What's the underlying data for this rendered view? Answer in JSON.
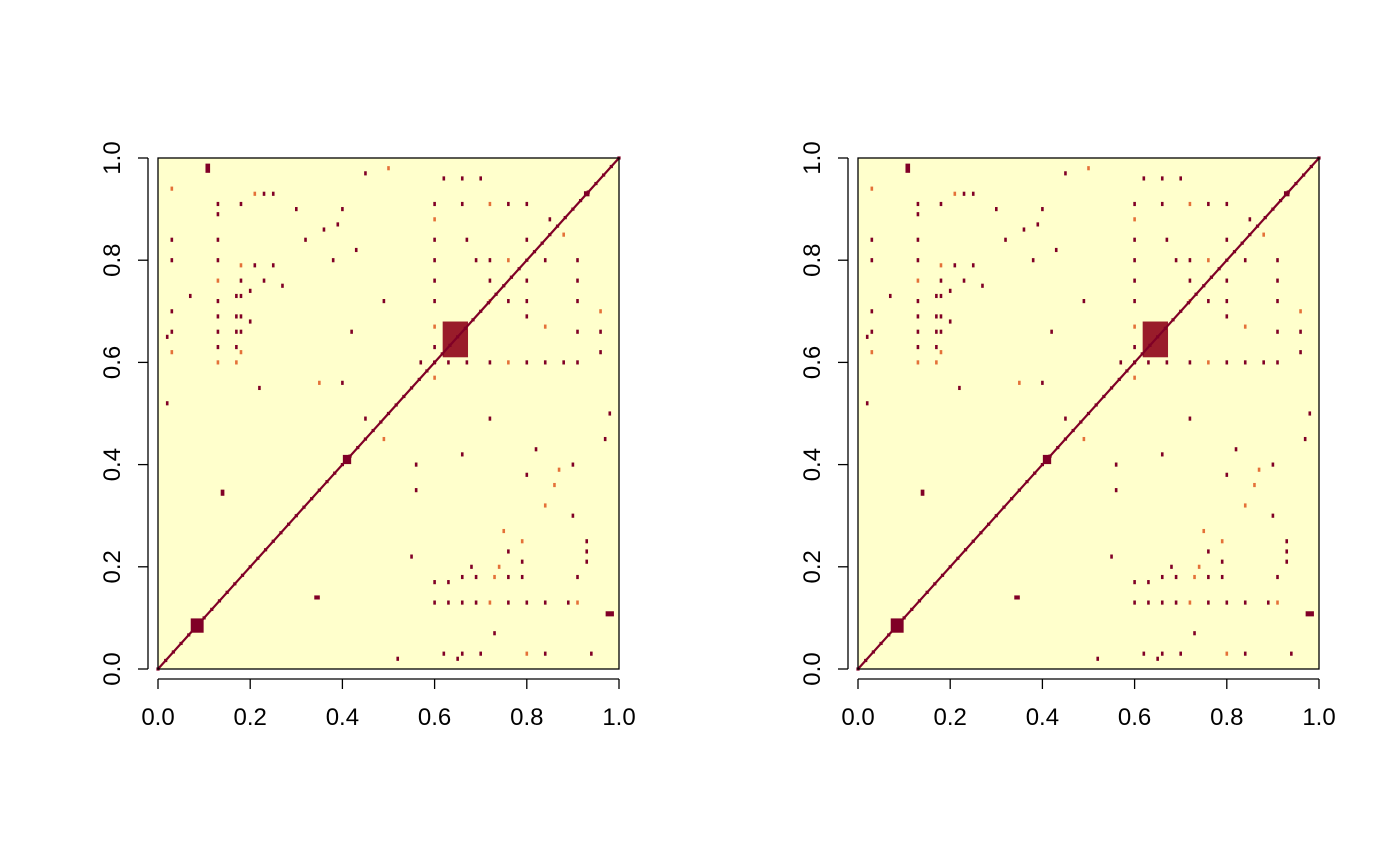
{
  "chart_data": [
    {
      "type": "heatmap",
      "title": "",
      "xlabel": "",
      "ylabel": "",
      "xlim": [
        0,
        1
      ],
      "ylim": [
        0,
        1
      ],
      "x_ticks": [
        "0.0",
        "0.2",
        "0.4",
        "0.6",
        "0.8",
        "1.0"
      ],
      "y_ticks": [
        "0.0",
        "0.2",
        "0.4",
        "0.6",
        "0.8",
        "1.0"
      ],
      "grid": false,
      "legend": "none",
      "colors": {
        "background": "#ffffcc",
        "low": "#ffffcc",
        "mid": "#fd8d3c",
        "high": "#800026"
      },
      "diagonal": {
        "from": [
          0,
          0
        ],
        "to": [
          1,
          1
        ],
        "value": 1.0
      },
      "blocks": [
        {
          "x": 0.085,
          "y": 0.085,
          "w": 0.028,
          "h": 0.028,
          "value": 1.0
        },
        {
          "x": 0.41,
          "y": 0.41,
          "w": 0.018,
          "h": 0.018,
          "value": 1.0
        },
        {
          "x": 0.14,
          "y": 0.345,
          "w": 0.008,
          "h": 0.012,
          "value": 1.0
        },
        {
          "x": 0.345,
          "y": 0.14,
          "w": 0.012,
          "h": 0.008,
          "value": 1.0
        },
        {
          "x": 0.645,
          "y": 0.645,
          "w": 0.055,
          "h": 0.07,
          "value": 0.9
        },
        {
          "x": 0.93,
          "y": 0.93,
          "w": 0.012,
          "h": 0.01,
          "value": 1.0
        },
        {
          "x": 0.98,
          "y": 0.108,
          "w": 0.018,
          "h": 0.01,
          "value": 1.0
        },
        {
          "x": 0.108,
          "y": 0.98,
          "w": 0.01,
          "h": 0.018,
          "value": 1.0
        }
      ],
      "scatter_cells": [
        [
          0.13,
          0.6
        ],
        [
          0.13,
          0.63
        ],
        [
          0.13,
          0.66
        ],
        [
          0.13,
          0.69
        ],
        [
          0.13,
          0.72
        ],
        [
          0.13,
          0.76
        ],
        [
          0.13,
          0.8
        ],
        [
          0.13,
          0.84
        ],
        [
          0.13,
          0.89
        ],
        [
          0.13,
          0.91
        ],
        [
          0.17,
          0.6
        ],
        [
          0.17,
          0.63
        ],
        [
          0.17,
          0.66
        ],
        [
          0.17,
          0.69
        ],
        [
          0.17,
          0.73
        ],
        [
          0.18,
          0.62
        ],
        [
          0.18,
          0.66
        ],
        [
          0.18,
          0.69
        ],
        [
          0.18,
          0.73
        ],
        [
          0.18,
          0.76
        ],
        [
          0.18,
          0.79
        ],
        [
          0.18,
          0.91
        ],
        [
          0.2,
          0.68
        ],
        [
          0.2,
          0.74
        ],
        [
          0.21,
          0.79
        ],
        [
          0.21,
          0.93
        ],
        [
          0.23,
          0.76
        ],
        [
          0.23,
          0.93
        ],
        [
          0.25,
          0.79
        ],
        [
          0.25,
          0.93
        ],
        [
          0.03,
          0.62
        ],
        [
          0.03,
          0.66
        ],
        [
          0.03,
          0.7
        ],
        [
          0.03,
          0.8
        ],
        [
          0.03,
          0.84
        ],
        [
          0.03,
          0.94
        ],
        [
          0.6,
          0.13
        ],
        [
          0.63,
          0.13
        ],
        [
          0.66,
          0.13
        ],
        [
          0.69,
          0.13
        ],
        [
          0.72,
          0.13
        ],
        [
          0.76,
          0.13
        ],
        [
          0.8,
          0.13
        ],
        [
          0.84,
          0.13
        ],
        [
          0.89,
          0.13
        ],
        [
          0.91,
          0.13
        ],
        [
          0.6,
          0.17
        ],
        [
          0.63,
          0.17
        ],
        [
          0.66,
          0.18
        ],
        [
          0.69,
          0.18
        ],
        [
          0.73,
          0.18
        ],
        [
          0.76,
          0.18
        ],
        [
          0.79,
          0.18
        ],
        [
          0.91,
          0.18
        ],
        [
          0.68,
          0.2
        ],
        [
          0.74,
          0.2
        ],
        [
          0.79,
          0.21
        ],
        [
          0.93,
          0.21
        ],
        [
          0.76,
          0.23
        ],
        [
          0.93,
          0.23
        ],
        [
          0.79,
          0.25
        ],
        [
          0.93,
          0.25
        ],
        [
          0.62,
          0.03
        ],
        [
          0.66,
          0.03
        ],
        [
          0.7,
          0.03
        ],
        [
          0.8,
          0.03
        ],
        [
          0.84,
          0.03
        ],
        [
          0.94,
          0.03
        ],
        [
          0.6,
          0.6
        ],
        [
          0.6,
          0.63
        ],
        [
          0.6,
          0.67
        ],
        [
          0.6,
          0.72
        ],
        [
          0.6,
          0.76
        ],
        [
          0.6,
          0.8
        ],
        [
          0.6,
          0.84
        ],
        [
          0.6,
          0.88
        ],
        [
          0.6,
          0.91
        ],
        [
          0.63,
          0.6
        ],
        [
          0.67,
          0.6
        ],
        [
          0.72,
          0.6
        ],
        [
          0.76,
          0.6
        ],
        [
          0.8,
          0.6
        ],
        [
          0.84,
          0.6
        ],
        [
          0.88,
          0.6
        ],
        [
          0.91,
          0.6
        ],
        [
          0.72,
          0.72
        ],
        [
          0.72,
          0.76
        ],
        [
          0.76,
          0.72
        ],
        [
          0.72,
          0.8
        ],
        [
          0.8,
          0.72
        ],
        [
          0.76,
          0.8
        ],
        [
          0.8,
          0.76
        ],
        [
          0.8,
          0.84
        ],
        [
          0.84,
          0.8
        ],
        [
          0.85,
          0.88
        ],
        [
          0.88,
          0.85
        ],
        [
          0.76,
          0.91
        ],
        [
          0.91,
          0.76
        ],
        [
          0.8,
          0.91
        ],
        [
          0.91,
          0.8
        ],
        [
          0.72,
          0.91
        ],
        [
          0.91,
          0.72
        ],
        [
          0.66,
          0.91
        ],
        [
          0.91,
          0.66
        ],
        [
          0.67,
          0.84
        ],
        [
          0.84,
          0.67
        ],
        [
          0.69,
          0.8
        ],
        [
          0.8,
          0.69
        ],
        [
          0.96,
          0.62
        ],
        [
          0.96,
          0.66
        ],
        [
          0.96,
          0.7
        ],
        [
          0.62,
          0.96
        ],
        [
          0.66,
          0.96
        ],
        [
          0.7,
          0.96
        ],
        [
          0.56,
          0.35
        ],
        [
          0.35,
          0.56
        ],
        [
          0.49,
          0.72
        ],
        [
          0.72,
          0.49
        ],
        [
          0.56,
          0.4
        ],
        [
          0.4,
          0.56
        ],
        [
          0.49,
          0.45
        ],
        [
          0.45,
          0.49
        ],
        [
          0.38,
          0.8
        ],
        [
          0.8,
          0.38
        ],
        [
          0.36,
          0.86
        ],
        [
          0.86,
          0.36
        ],
        [
          0.42,
          0.66
        ],
        [
          0.66,
          0.42
        ],
        [
          0.82,
          0.43
        ],
        [
          0.43,
          0.82
        ],
        [
          0.87,
          0.39
        ],
        [
          0.39,
          0.87
        ],
        [
          0.9,
          0.3
        ],
        [
          0.3,
          0.9
        ],
        [
          0.57,
          0.6
        ],
        [
          0.6,
          0.57
        ],
        [
          0.97,
          0.45
        ],
        [
          0.45,
          0.97
        ],
        [
          0.73,
          0.07
        ],
        [
          0.07,
          0.73
        ],
        [
          0.75,
          0.27
        ],
        [
          0.27,
          0.75
        ],
        [
          0.52,
          0.02
        ],
        [
          0.02,
          0.52
        ],
        [
          0.98,
          0.5
        ],
        [
          0.5,
          0.98
        ],
        [
          0.65,
          0.02
        ],
        [
          0.02,
          0.65
        ],
        [
          0.55,
          0.22
        ],
        [
          0.22,
          0.55
        ],
        [
          0.84,
          0.32
        ],
        [
          0.32,
          0.84
        ],
        [
          0.9,
          0.4
        ],
        [
          0.4,
          0.9
        ]
      ]
    },
    {
      "type": "heatmap",
      "title": "",
      "xlabel": "",
      "ylabel": "",
      "xlim": [
        0,
        1
      ],
      "ylim": [
        0,
        1
      ],
      "x_ticks": [
        "0.0",
        "0.2",
        "0.4",
        "0.6",
        "0.8",
        "1.0"
      ],
      "y_ticks": [
        "0.0",
        "0.2",
        "0.4",
        "0.6",
        "0.8",
        "1.0"
      ],
      "grid": false,
      "legend": "none",
      "colors": {
        "background": "#ffffcc",
        "low": "#ffffcc",
        "mid": "#fd8d3c",
        "high": "#800026"
      },
      "diagonal": {
        "from": [
          0,
          0
        ],
        "to": [
          1,
          1
        ],
        "value": 1.0
      },
      "blocks": [
        {
          "x": 0.085,
          "y": 0.085,
          "w": 0.028,
          "h": 0.028,
          "value": 1.0
        },
        {
          "x": 0.41,
          "y": 0.41,
          "w": 0.018,
          "h": 0.018,
          "value": 1.0
        },
        {
          "x": 0.14,
          "y": 0.345,
          "w": 0.008,
          "h": 0.012,
          "value": 1.0
        },
        {
          "x": 0.345,
          "y": 0.14,
          "w": 0.012,
          "h": 0.008,
          "value": 1.0
        },
        {
          "x": 0.645,
          "y": 0.645,
          "w": 0.055,
          "h": 0.07,
          "value": 0.9
        },
        {
          "x": 0.93,
          "y": 0.93,
          "w": 0.012,
          "h": 0.01,
          "value": 1.0
        },
        {
          "x": 0.98,
          "y": 0.108,
          "w": 0.018,
          "h": 0.01,
          "value": 1.0
        },
        {
          "x": 0.108,
          "y": 0.98,
          "w": 0.01,
          "h": 0.018,
          "value": 1.0
        }
      ],
      "scatter_cells": [
        [
          0.13,
          0.6
        ],
        [
          0.13,
          0.63
        ],
        [
          0.13,
          0.66
        ],
        [
          0.13,
          0.69
        ],
        [
          0.13,
          0.72
        ],
        [
          0.13,
          0.76
        ],
        [
          0.13,
          0.8
        ],
        [
          0.13,
          0.84
        ],
        [
          0.13,
          0.89
        ],
        [
          0.13,
          0.91
        ],
        [
          0.17,
          0.6
        ],
        [
          0.17,
          0.63
        ],
        [
          0.17,
          0.66
        ],
        [
          0.17,
          0.69
        ],
        [
          0.17,
          0.73
        ],
        [
          0.18,
          0.62
        ],
        [
          0.18,
          0.66
        ],
        [
          0.18,
          0.69
        ],
        [
          0.18,
          0.73
        ],
        [
          0.18,
          0.76
        ],
        [
          0.18,
          0.79
        ],
        [
          0.18,
          0.91
        ],
        [
          0.2,
          0.68
        ],
        [
          0.2,
          0.74
        ],
        [
          0.21,
          0.79
        ],
        [
          0.21,
          0.93
        ],
        [
          0.23,
          0.76
        ],
        [
          0.23,
          0.93
        ],
        [
          0.25,
          0.79
        ],
        [
          0.25,
          0.93
        ],
        [
          0.03,
          0.62
        ],
        [
          0.03,
          0.66
        ],
        [
          0.03,
          0.7
        ],
        [
          0.03,
          0.8
        ],
        [
          0.03,
          0.84
        ],
        [
          0.03,
          0.94
        ],
        [
          0.6,
          0.13
        ],
        [
          0.63,
          0.13
        ],
        [
          0.66,
          0.13
        ],
        [
          0.69,
          0.13
        ],
        [
          0.72,
          0.13
        ],
        [
          0.76,
          0.13
        ],
        [
          0.8,
          0.13
        ],
        [
          0.84,
          0.13
        ],
        [
          0.89,
          0.13
        ],
        [
          0.91,
          0.13
        ],
        [
          0.6,
          0.17
        ],
        [
          0.63,
          0.17
        ],
        [
          0.66,
          0.18
        ],
        [
          0.69,
          0.18
        ],
        [
          0.73,
          0.18
        ],
        [
          0.76,
          0.18
        ],
        [
          0.79,
          0.18
        ],
        [
          0.91,
          0.18
        ],
        [
          0.68,
          0.2
        ],
        [
          0.74,
          0.2
        ],
        [
          0.79,
          0.21
        ],
        [
          0.93,
          0.21
        ],
        [
          0.76,
          0.23
        ],
        [
          0.93,
          0.23
        ],
        [
          0.79,
          0.25
        ],
        [
          0.93,
          0.25
        ],
        [
          0.62,
          0.03
        ],
        [
          0.66,
          0.03
        ],
        [
          0.7,
          0.03
        ],
        [
          0.8,
          0.03
        ],
        [
          0.84,
          0.03
        ],
        [
          0.94,
          0.03
        ],
        [
          0.6,
          0.6
        ],
        [
          0.6,
          0.63
        ],
        [
          0.6,
          0.67
        ],
        [
          0.6,
          0.72
        ],
        [
          0.6,
          0.76
        ],
        [
          0.6,
          0.8
        ],
        [
          0.6,
          0.84
        ],
        [
          0.6,
          0.88
        ],
        [
          0.6,
          0.91
        ],
        [
          0.63,
          0.6
        ],
        [
          0.67,
          0.6
        ],
        [
          0.72,
          0.6
        ],
        [
          0.76,
          0.6
        ],
        [
          0.8,
          0.6
        ],
        [
          0.84,
          0.6
        ],
        [
          0.88,
          0.6
        ],
        [
          0.91,
          0.6
        ],
        [
          0.72,
          0.72
        ],
        [
          0.72,
          0.76
        ],
        [
          0.76,
          0.72
        ],
        [
          0.72,
          0.8
        ],
        [
          0.8,
          0.72
        ],
        [
          0.76,
          0.8
        ],
        [
          0.8,
          0.76
        ],
        [
          0.8,
          0.84
        ],
        [
          0.84,
          0.8
        ],
        [
          0.85,
          0.88
        ],
        [
          0.88,
          0.85
        ],
        [
          0.76,
          0.91
        ],
        [
          0.91,
          0.76
        ],
        [
          0.8,
          0.91
        ],
        [
          0.91,
          0.8
        ],
        [
          0.72,
          0.91
        ],
        [
          0.91,
          0.72
        ],
        [
          0.66,
          0.91
        ],
        [
          0.91,
          0.66
        ],
        [
          0.67,
          0.84
        ],
        [
          0.84,
          0.67
        ],
        [
          0.69,
          0.8
        ],
        [
          0.8,
          0.69
        ],
        [
          0.96,
          0.62
        ],
        [
          0.96,
          0.66
        ],
        [
          0.96,
          0.7
        ],
        [
          0.62,
          0.96
        ],
        [
          0.66,
          0.96
        ],
        [
          0.7,
          0.96
        ],
        [
          0.56,
          0.35
        ],
        [
          0.35,
          0.56
        ],
        [
          0.49,
          0.72
        ],
        [
          0.72,
          0.49
        ],
        [
          0.56,
          0.4
        ],
        [
          0.4,
          0.56
        ],
        [
          0.49,
          0.45
        ],
        [
          0.45,
          0.49
        ],
        [
          0.38,
          0.8
        ],
        [
          0.8,
          0.38
        ],
        [
          0.36,
          0.86
        ],
        [
          0.86,
          0.36
        ],
        [
          0.42,
          0.66
        ],
        [
          0.66,
          0.42
        ],
        [
          0.82,
          0.43
        ],
        [
          0.43,
          0.82
        ],
        [
          0.87,
          0.39
        ],
        [
          0.39,
          0.87
        ],
        [
          0.9,
          0.3
        ],
        [
          0.3,
          0.9
        ],
        [
          0.57,
          0.6
        ],
        [
          0.6,
          0.57
        ],
        [
          0.97,
          0.45
        ],
        [
          0.45,
          0.97
        ],
        [
          0.73,
          0.07
        ],
        [
          0.07,
          0.73
        ],
        [
          0.75,
          0.27
        ],
        [
          0.27,
          0.75
        ],
        [
          0.52,
          0.02
        ],
        [
          0.02,
          0.52
        ],
        [
          0.98,
          0.5
        ],
        [
          0.5,
          0.98
        ],
        [
          0.65,
          0.02
        ],
        [
          0.02,
          0.65
        ],
        [
          0.55,
          0.22
        ],
        [
          0.22,
          0.55
        ],
        [
          0.84,
          0.32
        ],
        [
          0.32,
          0.84
        ],
        [
          0.9,
          0.4
        ],
        [
          0.4,
          0.9
        ]
      ]
    }
  ]
}
